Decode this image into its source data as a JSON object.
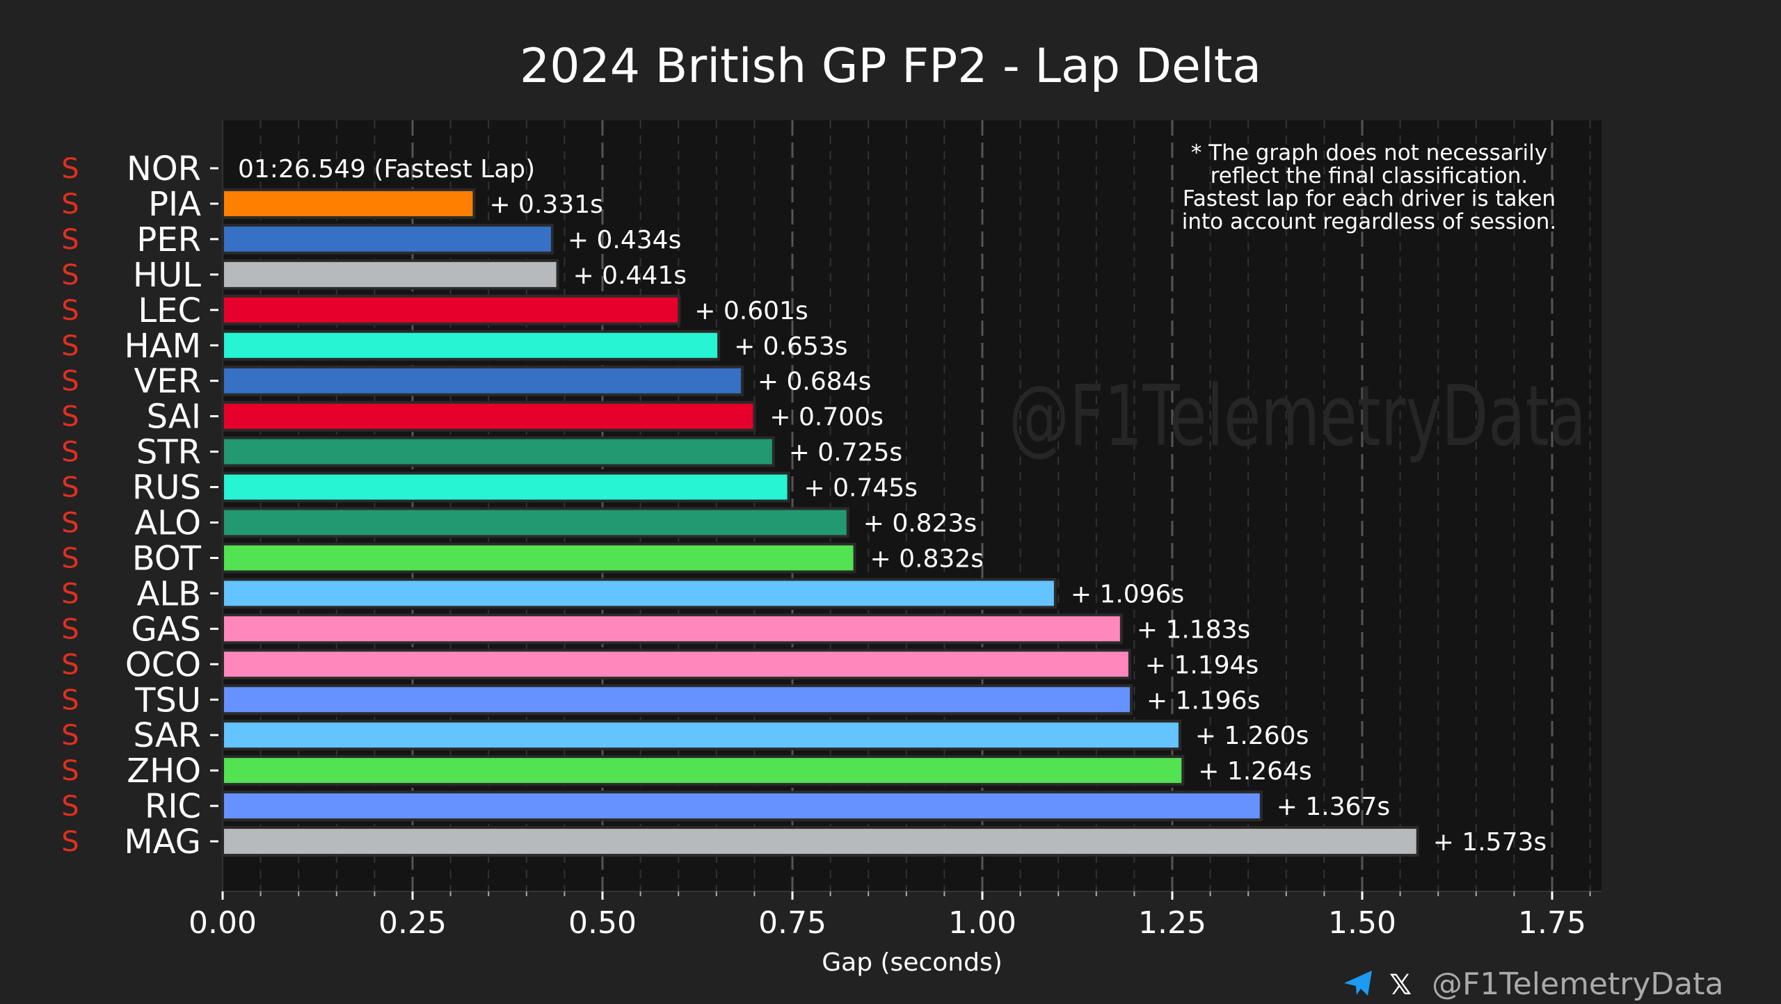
{
  "chart_data": {
    "type": "bar",
    "orientation": "horizontal",
    "title": "2024 British GP FP2 - Lap Delta",
    "xlabel": "Gap (seconds)",
    "ylabel": "",
    "xlim": [
      0,
      1.815
    ],
    "xticks": [
      "0.00",
      "0.25",
      "0.50",
      "0.75",
      "1.00",
      "1.25",
      "1.50",
      "1.75"
    ],
    "xtick_values": [
      0,
      0.25,
      0.5,
      0.75,
      1.0,
      1.25,
      1.5,
      1.75
    ],
    "grid": true,
    "fastest": {
      "driver": "NOR",
      "tyre": "S",
      "label": "01:26.549 (Fastest Lap)"
    },
    "drivers": [
      {
        "driver": "PIA",
        "tyre": "S",
        "value": 0.331,
        "label": "+ 0.331s",
        "color": "#ff8000"
      },
      {
        "driver": "PER",
        "tyre": "S",
        "value": 0.434,
        "label": "+ 0.434s",
        "color": "#3671c6"
      },
      {
        "driver": "HUL",
        "tyre": "S",
        "value": 0.441,
        "label": "+ 0.441s",
        "color": "#b6babd"
      },
      {
        "driver": "LEC",
        "tyre": "S",
        "value": 0.601,
        "label": "+ 0.601s",
        "color": "#e8002d"
      },
      {
        "driver": "HAM",
        "tyre": "S",
        "value": 0.653,
        "label": "+ 0.653s",
        "color": "#27f4d2"
      },
      {
        "driver": "VER",
        "tyre": "S",
        "value": 0.684,
        "label": "+ 0.684s",
        "color": "#3671c6"
      },
      {
        "driver": "SAI",
        "tyre": "S",
        "value": 0.7,
        "label": "+ 0.700s",
        "color": "#e8002d"
      },
      {
        "driver": "STR",
        "tyre": "S",
        "value": 0.725,
        "label": "+ 0.725s",
        "color": "#229971"
      },
      {
        "driver": "RUS",
        "tyre": "S",
        "value": 0.745,
        "label": "+ 0.745s",
        "color": "#27f4d2"
      },
      {
        "driver": "ALO",
        "tyre": "S",
        "value": 0.823,
        "label": "+ 0.823s",
        "color": "#229971"
      },
      {
        "driver": "BOT",
        "tyre": "S",
        "value": 0.832,
        "label": "+ 0.832s",
        "color": "#52e252"
      },
      {
        "driver": "ALB",
        "tyre": "S",
        "value": 1.096,
        "label": "+ 1.096s",
        "color": "#64c4ff"
      },
      {
        "driver": "GAS",
        "tyre": "S",
        "value": 1.183,
        "label": "+ 1.183s",
        "color": "#ff87bc"
      },
      {
        "driver": "OCO",
        "tyre": "S",
        "value": 1.194,
        "label": "+ 1.194s",
        "color": "#ff87bc"
      },
      {
        "driver": "TSU",
        "tyre": "S",
        "value": 1.196,
        "label": "+ 1.196s",
        "color": "#6692ff"
      },
      {
        "driver": "SAR",
        "tyre": "S",
        "value": 1.26,
        "label": "+ 1.260s",
        "color": "#64c4ff"
      },
      {
        "driver": "ZHO",
        "tyre": "S",
        "value": 1.264,
        "label": "+ 1.264s",
        "color": "#52e252"
      },
      {
        "driver": "RIC",
        "tyre": "S",
        "value": 1.367,
        "label": "+ 1.367s",
        "color": "#6692ff"
      },
      {
        "driver": "MAG",
        "tyre": "S",
        "value": 1.573,
        "label": "+ 1.573s",
        "color": "#b6babd"
      }
    ],
    "note": [
      "* The graph does not necessarily",
      "reflect the final classification.",
      "Fastest lap for each driver is taken",
      "into account regardless of session."
    ],
    "watermark": "@F1TelemetryData",
    "tyre_color": "#e0301e"
  },
  "footer": {
    "handle": "@F1TelemetryData",
    "telegram_icon": "telegram-icon",
    "x_icon": "x-logo-icon"
  }
}
